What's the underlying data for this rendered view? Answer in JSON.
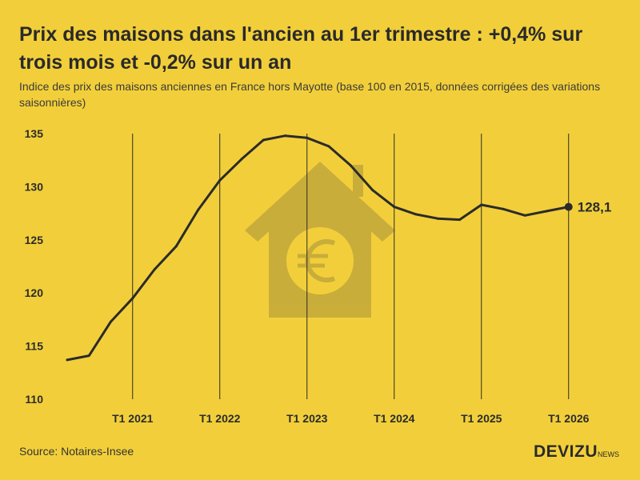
{
  "header": {
    "title": "Prix des maisons dans l'ancien au 1er trimestre : +0,4% sur trois mois et -0,2% sur un an",
    "subtitle": "Indice des prix des maisons anciennes en France hors Mayotte (base 100 en 2015, données corrigées des variations saisonnières)"
  },
  "footer": {
    "source": "Source: Notaires-Insee",
    "brand": "DEVIZU",
    "brand_suffix": "NEWS"
  },
  "decoration": {
    "icon": "house-euro-icon"
  },
  "chart_data": {
    "type": "line",
    "title": "Prix des maisons dans l'ancien au 1er trimestre : +0,4% sur trois mois et -0,2% sur un an",
    "subtitle": "Indice des prix des maisons anciennes en France hors Mayotte (base 100 en 2015, données corrigées des variations saisonnières)",
    "xlabel": "",
    "ylabel": "",
    "ylim": [
      110,
      135
    ],
    "yticks": [
      110,
      115,
      120,
      125,
      130,
      135
    ],
    "xticks": [
      "T1 2021",
      "T1 2022",
      "T1 2023",
      "T1 2024",
      "T1 2025",
      "T1 2026"
    ],
    "grid": "vertical lines at T1 of each year",
    "line_color": "#2b2b2b",
    "series": [
      {
        "x": [
          "T2 2020",
          "T3 2020",
          "T4 2020",
          "T1 2021",
          "T2 2021",
          "T3 2021",
          "T4 2021",
          "T1 2022",
          "T2 2022",
          "T3 2022",
          "T4 2022",
          "T1 2023",
          "T2 2023",
          "T3 2023",
          "T4 2023",
          "T1 2024",
          "T2 2024",
          "T3 2024",
          "T4 2024",
          "T1 2025",
          "T2 2025",
          "T3 2025",
          "T4 2025",
          "T1 2026"
        ],
        "values": [
          113.7,
          114.1,
          117.3,
          119.5,
          122.2,
          124.4,
          127.8,
          130.6,
          132.6,
          134.4,
          134.8,
          134.6,
          133.8,
          132.0,
          129.7,
          128.1,
          127.4,
          127.0,
          126.9,
          128.3,
          127.9,
          127.3,
          127.7,
          128.1
        ]
      }
    ],
    "annotations": [
      {
        "x": "T1 2026",
        "y": 128.1,
        "label": "128,1"
      }
    ]
  }
}
